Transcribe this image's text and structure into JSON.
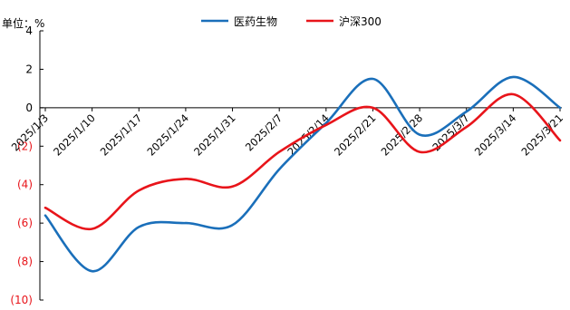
{
  "unit_label": "单位：%",
  "colors": {
    "series1": "#1a6fba",
    "series2": "#e8141a",
    "negative_tick": "#e8141a",
    "axis": "#000000"
  },
  "chart_data": {
    "type": "line",
    "title": "",
    "xlabel": "",
    "ylabel": "单位：%",
    "ylim": [
      -10,
      4
    ],
    "yticks": [
      4,
      2,
      0,
      -2,
      -4,
      -6,
      -8,
      -10
    ],
    "ytick_labels": [
      "4",
      "2",
      "0",
      "(2)",
      "(4)",
      "(6)",
      "(8)",
      "(10)"
    ],
    "negative_format": "parentheses",
    "legend_position": "top",
    "grid": false,
    "x": [
      "2025/1/3",
      "2025/1/10",
      "2025/1/17",
      "2025/1/24",
      "2025/1/31",
      "2025/2/7",
      "2025/2/14",
      "2025/2/21",
      "2025/2/28",
      "2025/3/7",
      "2025/3/14",
      "2025/3/21"
    ],
    "series": [
      {
        "name": "医药生物",
        "color": "#1a6fba",
        "values": [
          -5.6,
          -8.5,
          -6.2,
          -6.0,
          -6.1,
          -3.2,
          -0.8,
          1.5,
          -1.4,
          -0.2,
          1.6,
          0.0
        ]
      },
      {
        "name": "沪深300",
        "color": "#e8141a",
        "values": [
          -5.2,
          -6.3,
          -4.3,
          -3.7,
          -4.1,
          -2.3,
          -0.9,
          0.0,
          -2.3,
          -1.0,
          0.7,
          -1.7
        ]
      }
    ]
  }
}
